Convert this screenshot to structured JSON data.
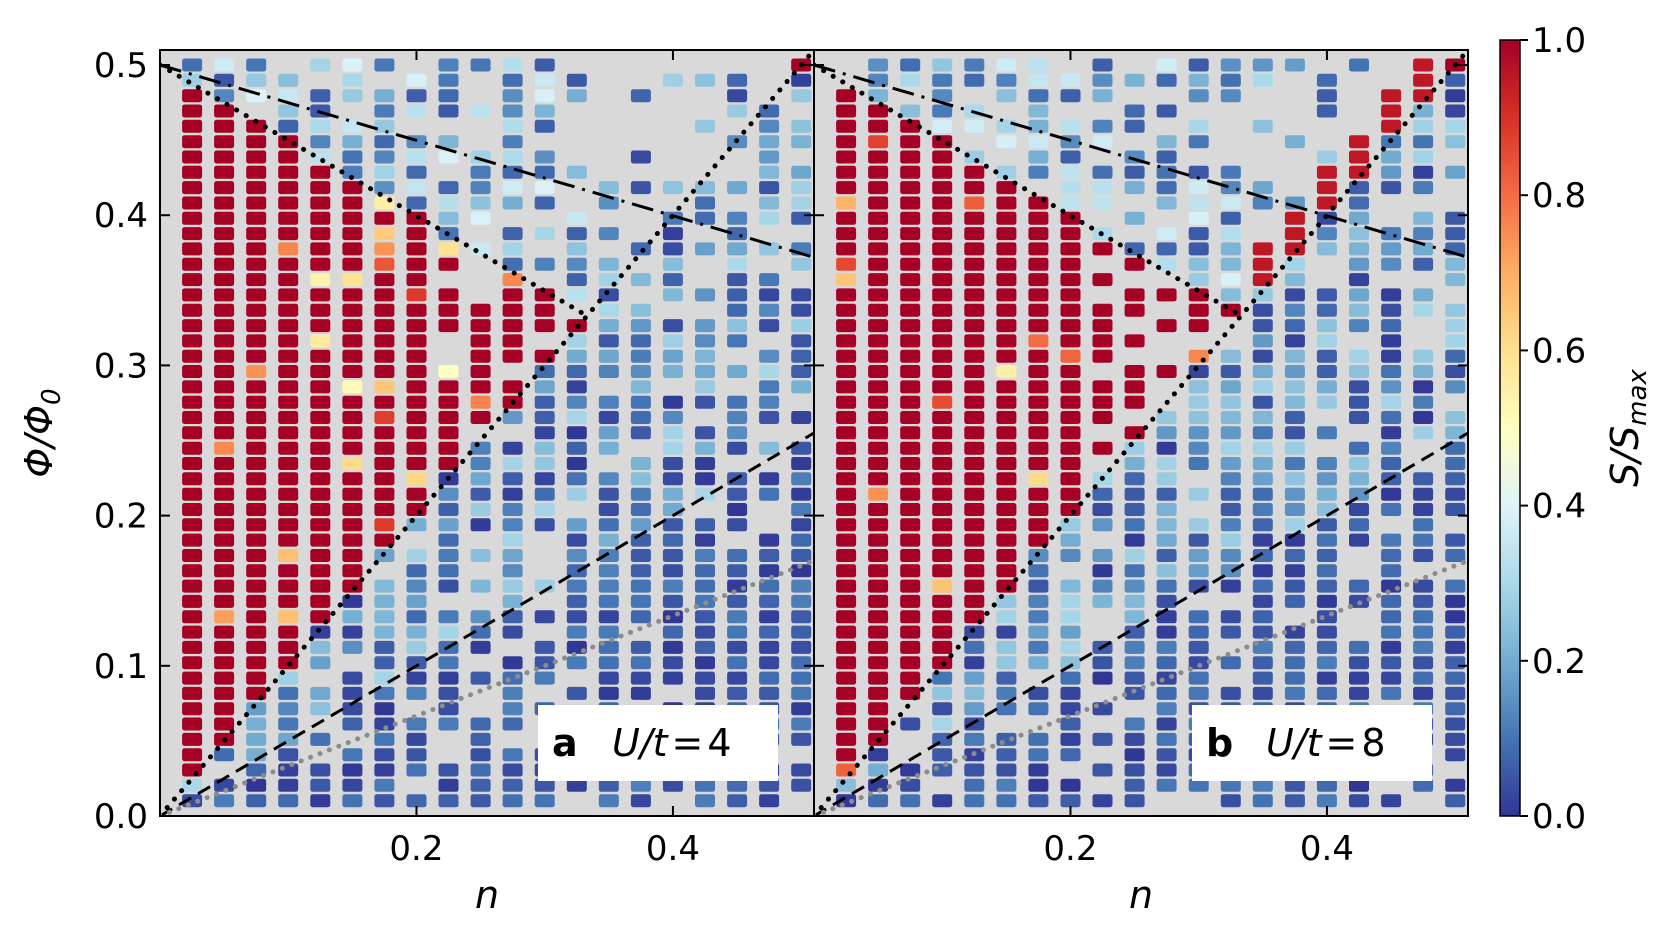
{
  "chart_data": [
    {
      "type": "heatmap",
      "panel_letter": "a",
      "annotation_var": "U/t",
      "annotation_eq": "=",
      "annotation_value": "4",
      "xlabel": "n",
      "ylabel": "Φ/Φ",
      "ylabel_sub": "0",
      "xlim": [
        0,
        0.51
      ],
      "ylim": [
        0,
        0.51
      ],
      "x_ticks": [
        "0.2",
        "0.4"
      ],
      "y_ticks": [
        "0.0",
        "0.1",
        "0.2",
        "0.3",
        "0.4",
        "0.5"
      ],
      "lines": [
        {
          "style": "dotted-black",
          "points": [
            [
              0,
              0.5
            ],
            [
              0.333,
              0.333
            ]
          ]
        },
        {
          "style": "dotted-black",
          "points": [
            [
              0,
              0
            ],
            [
              0.51,
              0.51
            ]
          ]
        },
        {
          "style": "dashdot-black",
          "points": [
            [
              0,
              0.5
            ],
            [
              0.51,
              0.372
            ]
          ]
        },
        {
          "style": "dashed-black",
          "points": [
            [
              0,
              0
            ],
            [
              0.51,
              0.255
            ]
          ]
        },
        {
          "style": "dotted-gray",
          "points": [
            [
              0,
              0
            ],
            [
              0.51,
              0.17
            ]
          ]
        }
      ]
    },
    {
      "type": "heatmap",
      "panel_letter": "b",
      "annotation_var": "U/t",
      "annotation_eq": "=",
      "annotation_value": "8",
      "xlabel": "n",
      "xlim": [
        0,
        0.51
      ],
      "ylim": [
        0,
        0.51
      ],
      "x_ticks": [
        "0.2",
        "0.4"
      ],
      "lines": [
        {
          "style": "dotted-black",
          "points": [
            [
              0,
              0.5
            ],
            [
              0.333,
              0.333
            ]
          ]
        },
        {
          "style": "dotted-black",
          "points": [
            [
              0,
              0
            ],
            [
              0.51,
              0.51
            ]
          ]
        },
        {
          "style": "dashdot-black",
          "points": [
            [
              0,
              0.5
            ],
            [
              0.51,
              0.372
            ]
          ]
        },
        {
          "style": "dashed-black",
          "points": [
            [
              0,
              0
            ],
            [
              0.51,
              0.255
            ]
          ]
        },
        {
          "style": "dotted-gray",
          "points": [
            [
              0,
              0
            ],
            [
              0.51,
              0.17
            ]
          ]
        }
      ]
    }
  ],
  "colorbar": {
    "label_main": "S/S",
    "label_sub": "max",
    "min": 0,
    "max": 1,
    "ticks": [
      "0.0",
      "0.2",
      "0.4",
      "0.6",
      "0.8",
      "1.0"
    ],
    "colormap": "RdYlBu_r"
  }
}
